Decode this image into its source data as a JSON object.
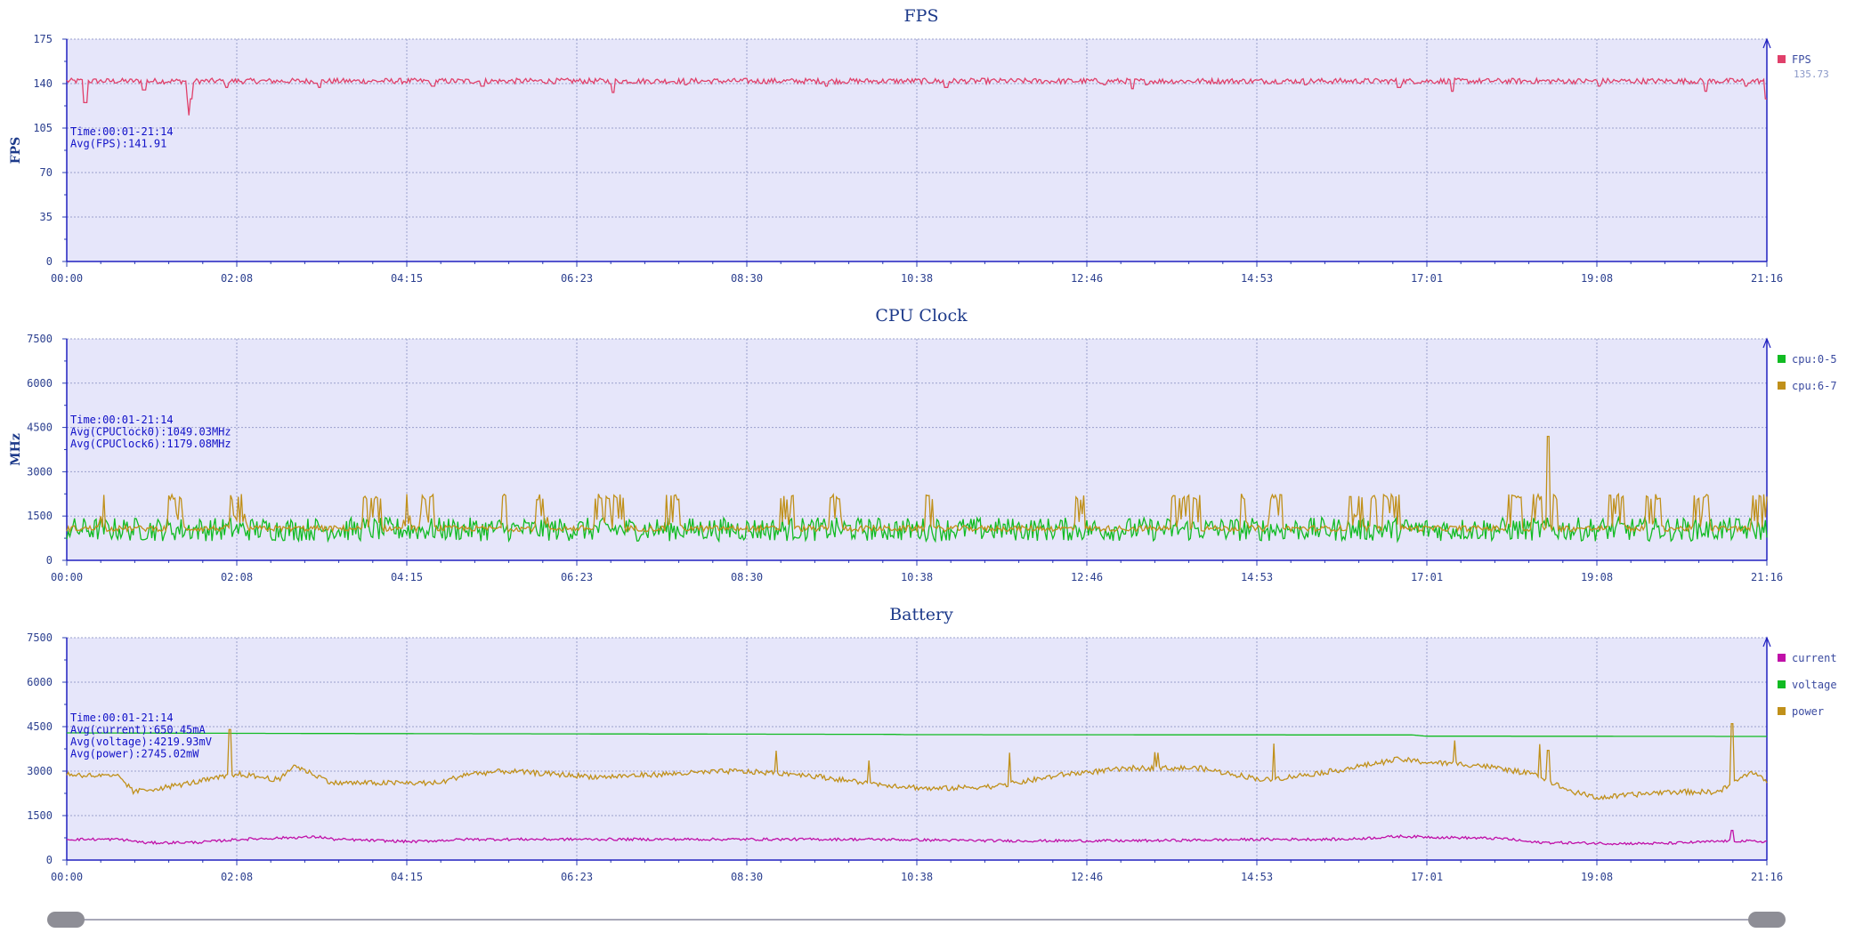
{
  "chart_data": [
    {
      "type": "line",
      "title": "FPS",
      "ylabel": "FPS",
      "ylim": [
        0,
        175
      ],
      "yticks": [
        "0",
        "35",
        "70",
        "105",
        "140",
        "175"
      ],
      "xticks": [
        "00:00",
        "02:08",
        "04:15",
        "06:23",
        "08:30",
        "10:38",
        "12:46",
        "14:53",
        "17:01",
        "19:08",
        "21:16"
      ],
      "xlim_seconds": [
        0,
        1276
      ],
      "grid": true,
      "legend_position": "right",
      "info": [
        "Time:00:01-21:14",
        "Avg(FPS):141.91"
      ],
      "series": [
        {
          "name": "FPS",
          "color": "#e0406a",
          "legend_value": "135.73",
          "baseline": 142,
          "noise": 2.2,
          "x": [
            0,
            14,
            58,
            91,
            92,
            93,
            120,
            190,
            275,
            312,
            410,
            465,
            570,
            660,
            779,
            800,
            810,
            930,
            1000,
            1040,
            1150,
            1230,
            1260,
            1272,
            1275
          ],
          "values": [
            142,
            125,
            135,
            128,
            115,
            128,
            137,
            137,
            138,
            138,
            133,
            139,
            138,
            137,
            139,
            136,
            139,
            139,
            137,
            134,
            138,
            134,
            138,
            141,
            128
          ]
        }
      ]
    },
    {
      "type": "line",
      "title": "CPU Clock",
      "ylabel": "MHz",
      "ylim": [
        0,
        7500
      ],
      "yticks": [
        "0",
        "1500",
        "3000",
        "4500",
        "6000",
        "7500"
      ],
      "xticks": [
        "00:00",
        "02:08",
        "04:15",
        "06:23",
        "08:30",
        "10:38",
        "12:46",
        "14:53",
        "17:01",
        "19:08",
        "21:16"
      ],
      "xlim_seconds": [
        0,
        1276
      ],
      "grid": true,
      "legend_position": "right",
      "info": [
        "Time:00:01-21:14",
        "Avg(CPUClock0):1049.03MHz",
        "Avg(CPUClock6):1179.08MHz"
      ],
      "series": [
        {
          "name": "cpu:0-5",
          "color": "#11bb22",
          "baseline": 1049,
          "low": 650,
          "high": 1450
        },
        {
          "name": "cpu:6-7",
          "color": "#c0901a",
          "baseline": 1179,
          "peak": 2250,
          "spike_x": 1112,
          "spike_value": 4200
        }
      ]
    },
    {
      "type": "line",
      "title": "Battery",
      "ylabel": "",
      "ylim": [
        0,
        7500
      ],
      "yticks": [
        "0",
        "1500",
        "3000",
        "4500",
        "6000",
        "7500"
      ],
      "xticks": [
        "00:00",
        "02:08",
        "04:15",
        "06:23",
        "08:30",
        "10:38",
        "12:46",
        "14:53",
        "17:01",
        "19:08",
        "21:16"
      ],
      "xlim_seconds": [
        0,
        1276
      ],
      "grid": true,
      "legend_position": "right",
      "info": [
        "Time:00:01-21:14",
        "Avg(current):650.45mA",
        "Avg(voltage):4219.93mV",
        "Avg(power):2745.02mW"
      ],
      "series": [
        {
          "name": "current",
          "color": "#c010a8",
          "x": [
            0,
            40,
            60,
            100,
            130,
            170,
            190,
            200,
            260,
            300,
            400,
            500,
            600,
            700,
            800,
            900,
            960,
            1000,
            1080,
            1100,
            1160,
            1200,
            1250,
            1276
          ],
          "values": [
            700,
            700,
            580,
            600,
            700,
            760,
            780,
            700,
            620,
            700,
            700,
            700,
            700,
            650,
            650,
            700,
            700,
            800,
            720,
            600,
            560,
            560,
            650,
            620
          ]
        },
        {
          "name": "voltage",
          "color": "#11bb22",
          "x": [
            0,
            180,
            620,
            630,
            1010,
            1020,
            1276
          ],
          "values": [
            4290,
            4270,
            4240,
            4230,
            4220,
            4180,
            4170
          ]
        },
        {
          "name": "power",
          "color": "#c0901a",
          "x": [
            0,
            40,
            50,
            80,
            130,
            160,
            170,
            200,
            260,
            280,
            300,
            330,
            400,
            450,
            500,
            550,
            600,
            650,
            700,
            750,
            800,
            850,
            900,
            950,
            1000,
            1020,
            1060,
            1100,
            1130,
            1150,
            1200,
            1240,
            1265,
            1276
          ],
          "values": [
            2900,
            2800,
            2300,
            2500,
            2900,
            2700,
            3200,
            2600,
            2600,
            2600,
            2900,
            3000,
            2800,
            2900,
            3000,
            2900,
            2600,
            2400,
            2500,
            2900,
            3100,
            3100,
            2700,
            3000,
            3400,
            3300,
            3200,
            2900,
            2300,
            2100,
            2300,
            2300,
            3000,
            2600
          ]
        }
      ]
    }
  ],
  "slider": {
    "start_fraction": 0,
    "end_fraction": 1
  }
}
